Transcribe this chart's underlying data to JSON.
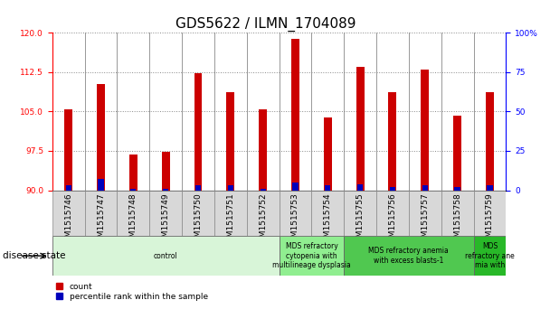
{
  "title": "GDS5622 / ILMN_1704089",
  "samples": [
    "GSM1515746",
    "GSM1515747",
    "GSM1515748",
    "GSM1515749",
    "GSM1515750",
    "GSM1515751",
    "GSM1515752",
    "GSM1515753",
    "GSM1515754",
    "GSM1515755",
    "GSM1515756",
    "GSM1515757",
    "GSM1515758",
    "GSM1515759"
  ],
  "count_values": [
    105.4,
    110.2,
    96.8,
    97.3,
    112.3,
    108.7,
    105.4,
    118.8,
    103.8,
    113.5,
    108.7,
    113.0,
    104.2,
    108.7
  ],
  "percentile_values": [
    3,
    7,
    1,
    1,
    3,
    3,
    1,
    5,
    3,
    4,
    2,
    3,
    2,
    3
  ],
  "ylim_left": [
    90,
    120
  ],
  "ylim_right": [
    0,
    100
  ],
  "yticks_left": [
    90,
    97.5,
    105,
    112.5,
    120
  ],
  "yticks_right": [
    0,
    25,
    50,
    75,
    100
  ],
  "count_color": "#cc0000",
  "percentile_color": "#0000bb",
  "bg_color": "#ffffff",
  "ticklabel_bg": "#d8d8d8",
  "disease_groups": [
    {
      "label": "control",
      "start": 0,
      "end": 7,
      "color": "#d8f5d8"
    },
    {
      "label": "MDS refractory\ncytopenia with\nmultilineage dysplasia",
      "start": 7,
      "end": 9,
      "color": "#90ee90"
    },
    {
      "label": "MDS refractory anemia\nwith excess blasts-1",
      "start": 9,
      "end": 13,
      "color": "#50c850"
    },
    {
      "label": "MDS\nrefractory ane\nmia with",
      "start": 13,
      "end": 14,
      "color": "#28b828"
    }
  ],
  "xlabel_disease": "disease state",
  "legend_count": "count",
  "legend_percentile": "percentile rank within the sample",
  "title_fontsize": 11,
  "tick_fontsize": 6.5,
  "label_fontsize": 7.5
}
